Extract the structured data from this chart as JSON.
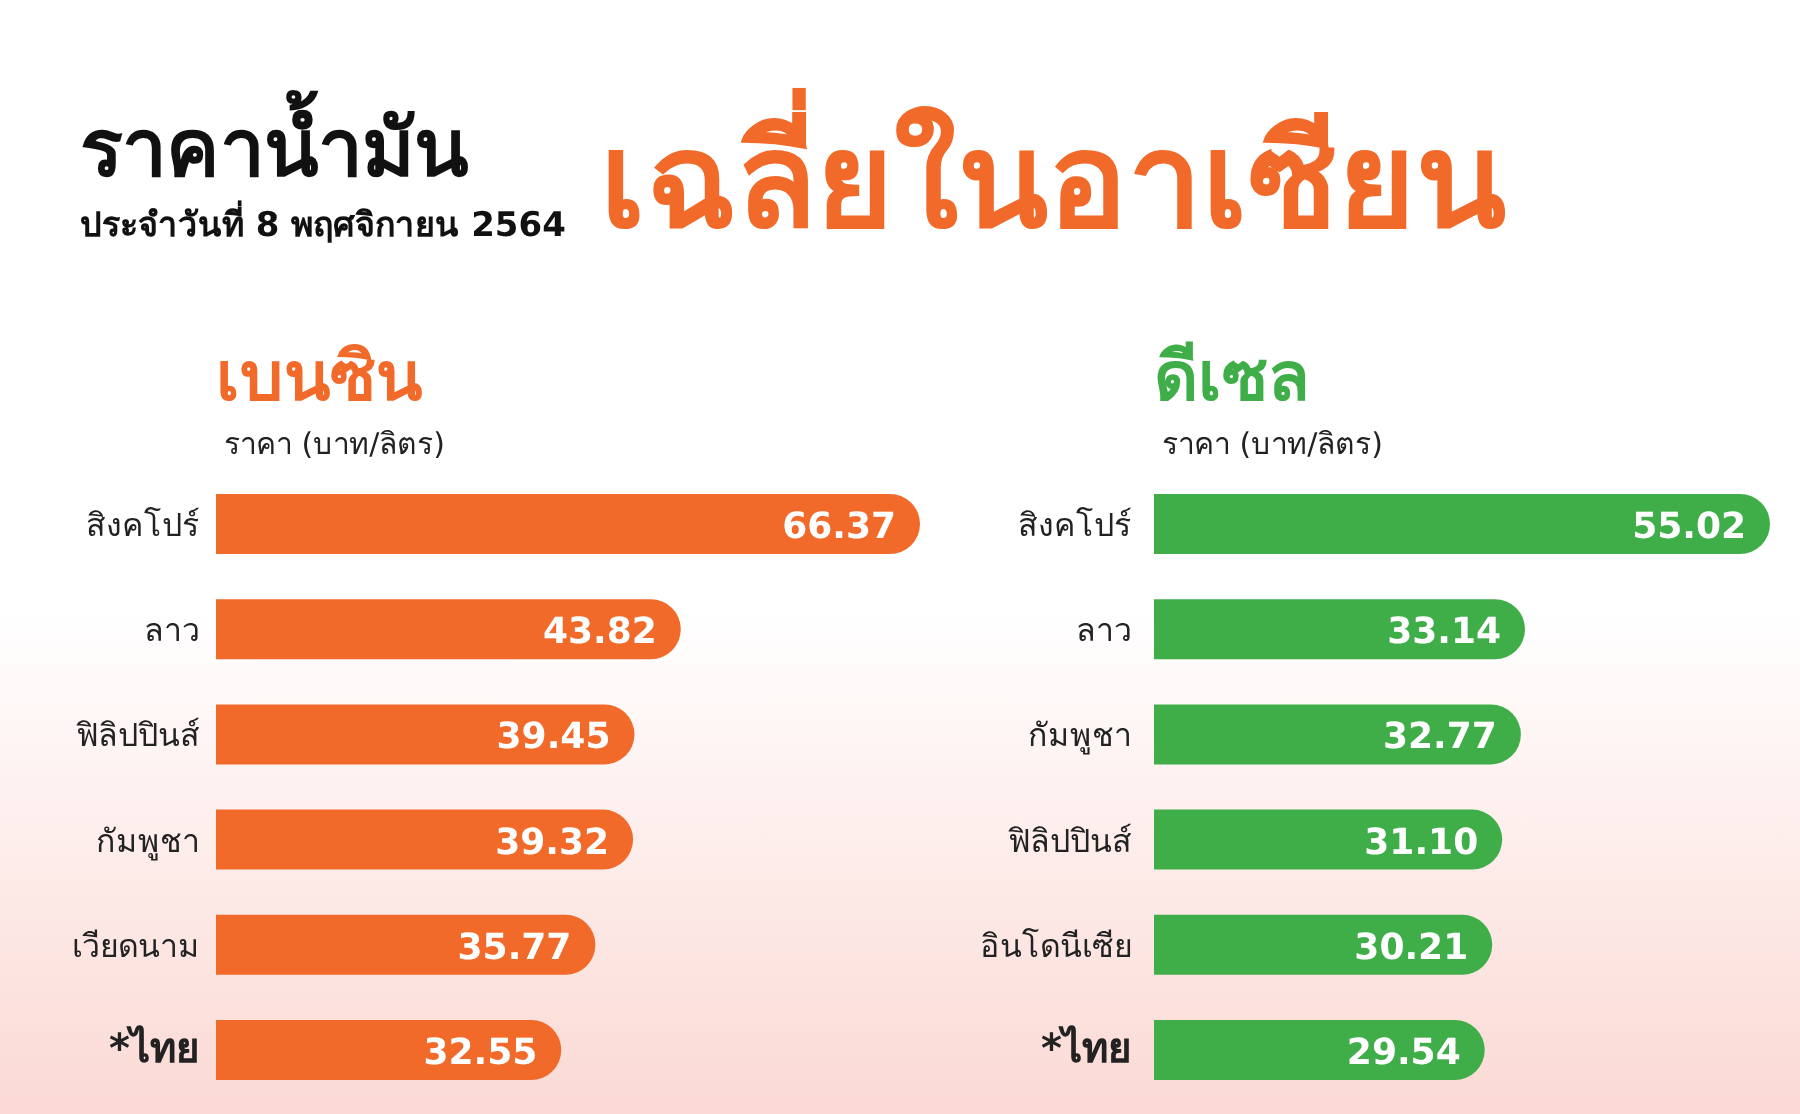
{
  "chart_data": [
    {
      "type": "other",
      "title": "ราคาน้ำมัน",
      "subtitle": "เฉลี่ยในอาเซียน",
      "annotations": [
        "ประจำวันที่ 8 พฤศจิกายน 2564"
      ]
    },
    {
      "type": "bar",
      "orientation": "horizontal",
      "title": "เบนซิน",
      "subtitle": "ราคา (บาท/ลิตร)",
      "categories": [
        "สิงคโปร์",
        "ลาว",
        "ฟิลิปปินส์",
        "กัมพูชา",
        "เวียดนาม",
        "*ไทย"
      ],
      "values": [
        66.37,
        43.82,
        39.45,
        39.32,
        35.77,
        32.55
      ],
      "color": "#f26a2a",
      "data_labels": true
    },
    {
      "type": "bar",
      "orientation": "horizontal",
      "title": "ดีเซล",
      "subtitle": "ราคา (บาท/ลิตร)",
      "categories": [
        "สิงคโปร์",
        "ลาว",
        "กัมพูชา",
        "ฟิลิปปินส์",
        "อินโดนีเซีย",
        "*ไทย"
      ],
      "values": [
        55.02,
        33.14,
        32.77,
        31.1,
        30.21,
        29.54
      ],
      "value_labels": [
        "55.02",
        "33.14",
        "32.77",
        "31.10",
        "30.21",
        "29.54"
      ],
      "color": "#3fae49"
    }
  ]
}
